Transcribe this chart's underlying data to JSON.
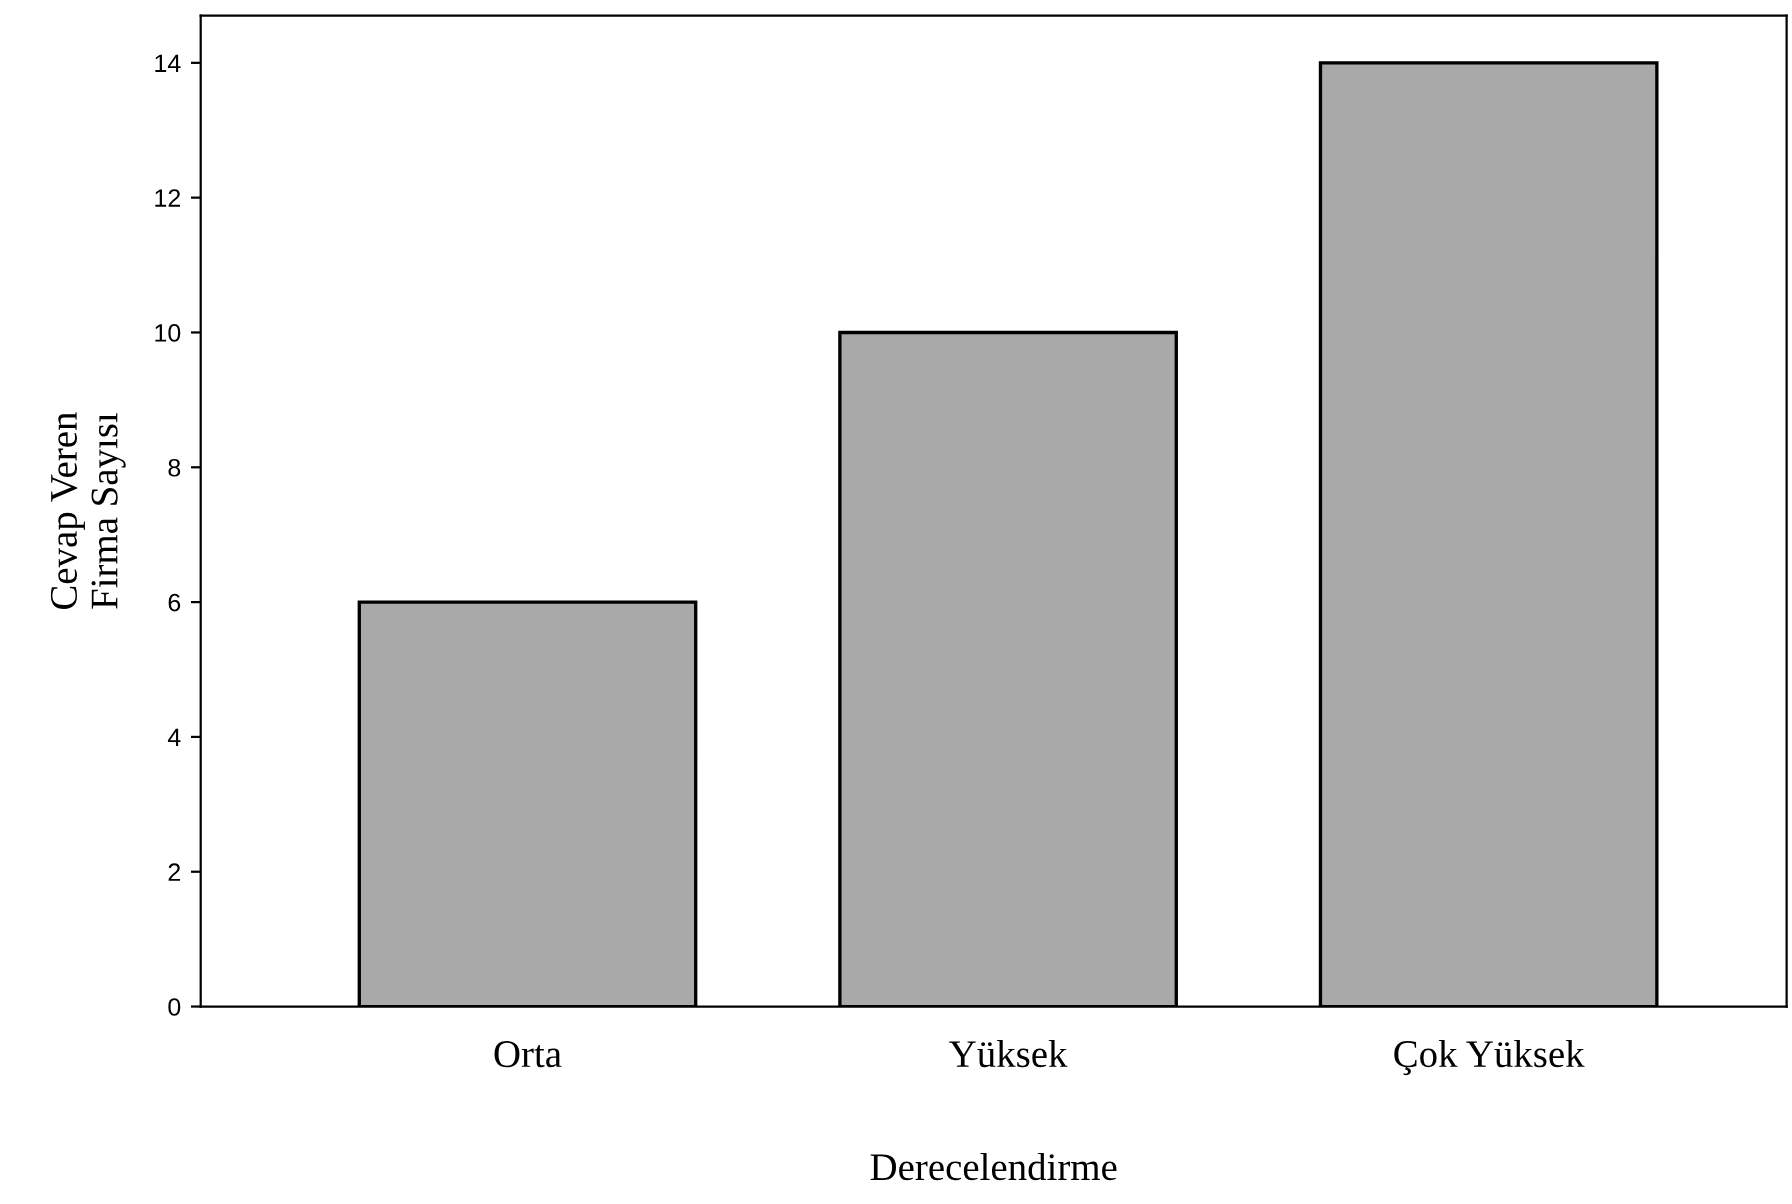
{
  "chart_data": {
    "type": "bar",
    "xlabel": "Derecelendirme",
    "ylabel": "Cevap Veren\nFirma Sayısı",
    "categories": [
      "Orta",
      "Yüksek",
      "Çok Yüksek"
    ],
    "values": [
      6,
      10,
      14
    ],
    "color": "#a9a9a9",
    "ylim": [
      0,
      14.7
    ],
    "yticks": [
      0,
      2,
      4,
      6,
      8,
      10,
      12,
      14
    ],
    "grid": false
  }
}
